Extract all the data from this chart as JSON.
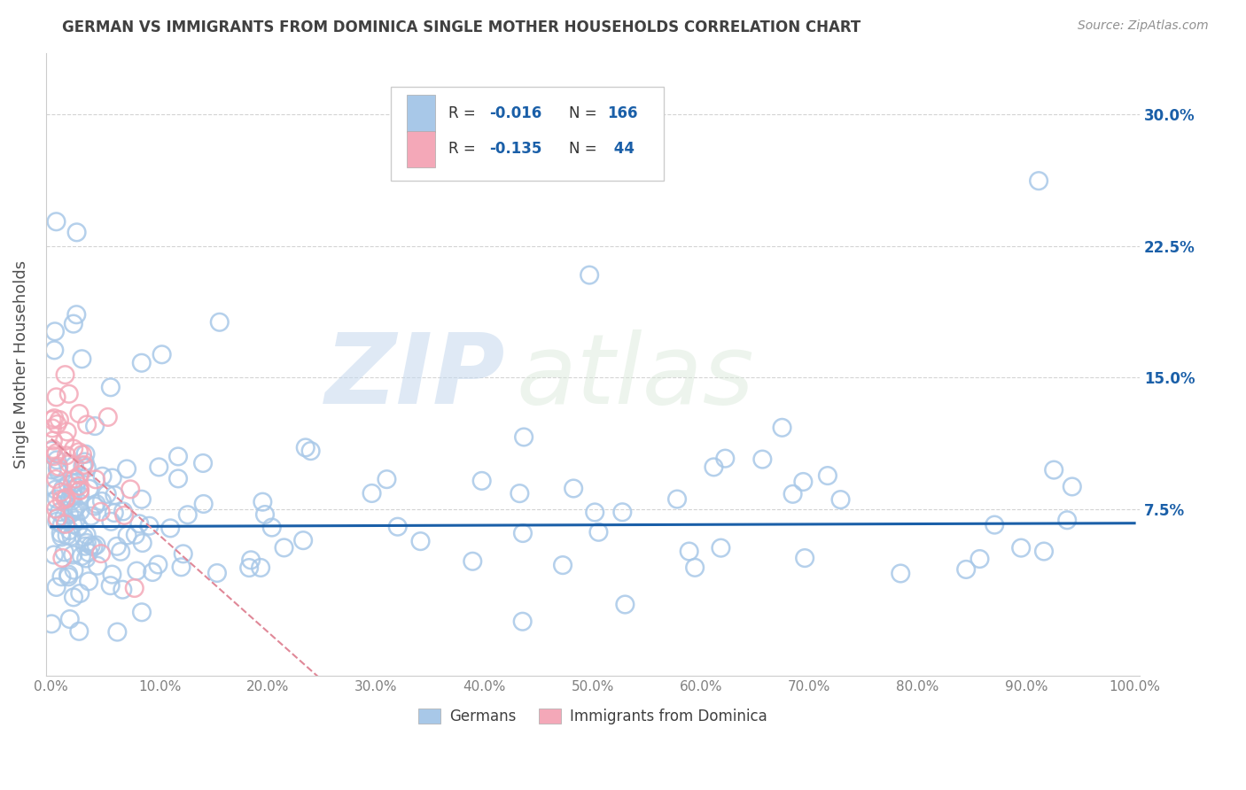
{
  "title": "GERMAN VS IMMIGRANTS FROM DOMINICA SINGLE MOTHER HOUSEHOLDS CORRELATION CHART",
  "source": "Source: ZipAtlas.com",
  "ylabel": "Single Mother Households",
  "watermark_zip": "ZIP",
  "watermark_atlas": "atlas",
  "xlim": [
    -0.005,
    1.005
  ],
  "ylim": [
    -0.02,
    0.335
  ],
  "xticks": [
    0.0,
    0.1,
    0.2,
    0.3,
    0.4,
    0.5,
    0.6,
    0.7,
    0.8,
    0.9,
    1.0
  ],
  "xticklabels": [
    "0.0%",
    "10.0%",
    "20.0%",
    "30.0%",
    "40.0%",
    "50.0%",
    "60.0%",
    "70.0%",
    "80.0%",
    "90.0%",
    "100.0%"
  ],
  "yticks": [
    0.075,
    0.15,
    0.225,
    0.3
  ],
  "yticklabels": [
    "7.5%",
    "15.0%",
    "22.5%",
    "30.0%"
  ],
  "blue_color": "#a8c8e8",
  "pink_color": "#f4a8b8",
  "blue_line_color": "#1a5fa8",
  "pink_line_color": "#e08898",
  "legend_R1": "R = -0.016",
  "legend_N1": "N = 166",
  "legend_R2": "R = -0.135",
  "legend_N2": "N =  44",
  "R1": -0.016,
  "N1": 166,
  "R2": -0.135,
  "N2": 44,
  "blue_intercept": 0.065,
  "blue_slope": 0.002,
  "pink_intercept": 0.115,
  "pink_slope": -0.55,
  "background_color": "#ffffff",
  "grid_color": "#d0d0d0",
  "title_color": "#404040",
  "axis_label_color": "#505050",
  "tick_color": "#808080",
  "value_color": "#1a5fa8",
  "legend_text_color": "#333333"
}
